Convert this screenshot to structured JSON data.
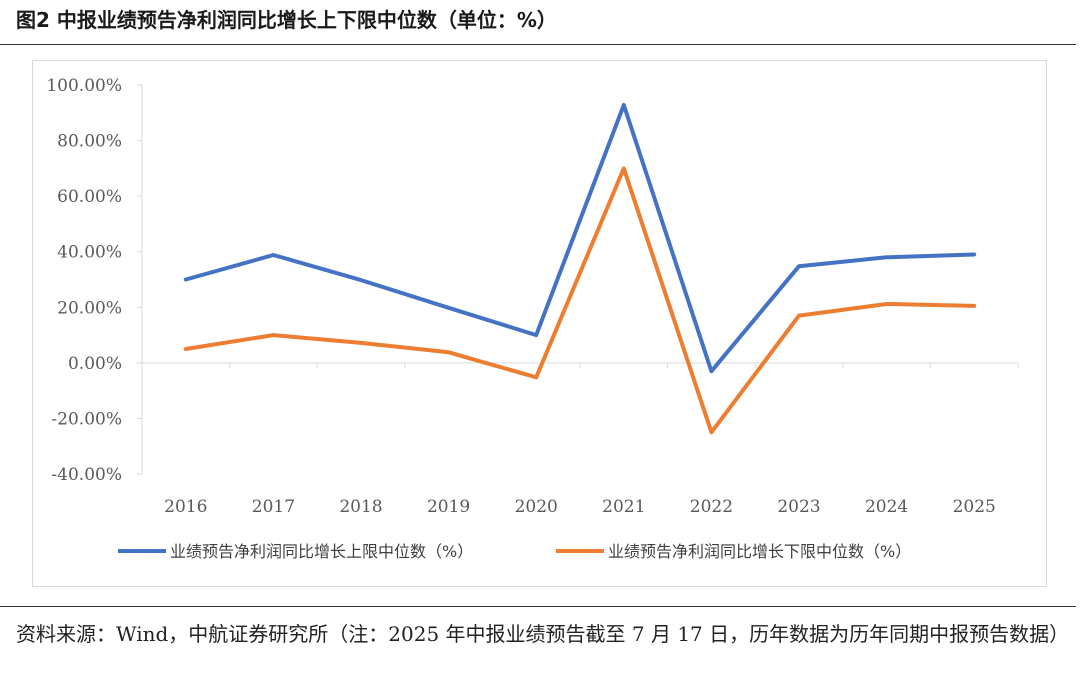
{
  "figure": {
    "title": "图2 中报业绩预告净利润同比增长上下限中位数（单位：%）",
    "source": "资料来源：Wind，中航证券研究所（注：2025 年中报业绩预告截至 7 月 17 日，历年数据为历年同期中报预告数据）"
  },
  "chart_data": {
    "type": "line",
    "title": "",
    "xlabel": "",
    "ylabel": "",
    "categories": [
      "2016",
      "2017",
      "2018",
      "2019",
      "2020",
      "2021",
      "2022",
      "2023",
      "2024",
      "2025"
    ],
    "ylim": [
      -40,
      100
    ],
    "yticks": [
      100,
      80,
      60,
      40,
      20,
      0,
      -20,
      -40
    ],
    "ytick_labels": [
      "100.00%",
      "80.00%",
      "60.00%",
      "40.00%",
      "20.00%",
      "0.00%",
      "-20.00%",
      "-40.00%"
    ],
    "grid": false,
    "legend_position": "bottom",
    "series": [
      {
        "name": "业绩预告净利润同比增长上限中位数（%）",
        "color": "#4472C4",
        "values": [
          30,
          38.8,
          29.8,
          19.8,
          10,
          92.8,
          -3,
          34.8,
          38,
          39
        ]
      },
      {
        "name": "业绩预告净利润同比增长下限中位数（%）",
        "color": "#ED7D31",
        "values": [
          5,
          10,
          7.2,
          3.8,
          -5.2,
          70,
          -25,
          17,
          21.2,
          20.5
        ]
      }
    ]
  }
}
